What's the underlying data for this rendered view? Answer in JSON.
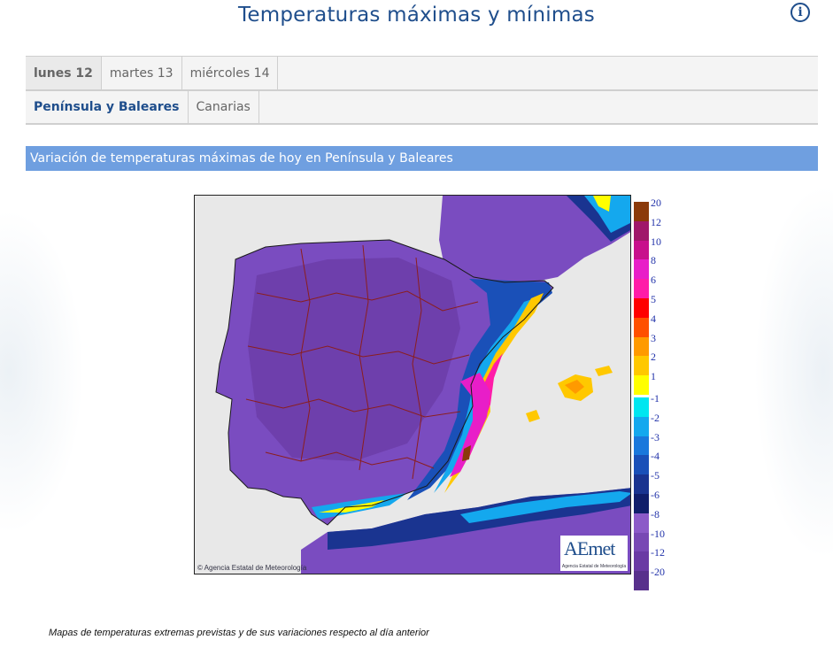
{
  "page": {
    "title": "Temperaturas máximas y mínimas",
    "info_icon": "info-icon"
  },
  "day_tabs": [
    {
      "label": "lunes 12",
      "active": true
    },
    {
      "label": "martes 13",
      "active": false
    },
    {
      "label": "miércoles 14",
      "active": false
    }
  ],
  "region_tabs": [
    {
      "label": "Península y Baleares",
      "active": true
    },
    {
      "label": "Canarias",
      "active": false
    }
  ],
  "section": {
    "heading": "Variación de temperaturas máximas de hoy en Península y Baleares"
  },
  "map": {
    "copyright": "© Agencia Estatal de Meteorología",
    "logo_text": "AEmet",
    "logo_subtext": "Agencia Estatal de Meteorología"
  },
  "legend": {
    "items": [
      {
        "label": "20",
        "color": "#8b3a0a"
      },
      {
        "label": "12",
        "color": "#a0186a"
      },
      {
        "label": "10",
        "color": "#c8108c"
      },
      {
        "label": "8",
        "color": "#e81ec8"
      },
      {
        "label": "6",
        "color": "#ff1ca8"
      },
      {
        "label": "5",
        "color": "#ff0000"
      },
      {
        "label": "4",
        "color": "#ff5000"
      },
      {
        "label": "3",
        "color": "#ff9a00"
      },
      {
        "label": "2",
        "color": "#ffc800"
      },
      {
        "label": "1",
        "color": "#ffff00"
      },
      {
        "label": "-1",
        "color": "#00e6f0"
      },
      {
        "label": "-2",
        "color": "#14a8ee"
      },
      {
        "label": "-3",
        "color": "#1a78dc"
      },
      {
        "label": "-4",
        "color": "#1a50b8"
      },
      {
        "label": "-5",
        "color": "#1a3490"
      },
      {
        "label": "-6",
        "color": "#101e6a"
      },
      {
        "label": "-8",
        "color": "#8c5ac8"
      },
      {
        "label": "-10",
        "color": "#7848b4"
      },
      {
        "label": "-12",
        "color": "#6a3aa4"
      },
      {
        "label": "-20",
        "color": "#58308c"
      }
    ]
  },
  "caption": "Mapas de temperaturas extremas previstas y de sus variaciones respecto al día anterior",
  "colors": {
    "brand_blue": "#1f4e8c",
    "section_bar": "#6f9fe0",
    "land_purple": "#7a4cc0",
    "sea": "#e8e8e8"
  }
}
